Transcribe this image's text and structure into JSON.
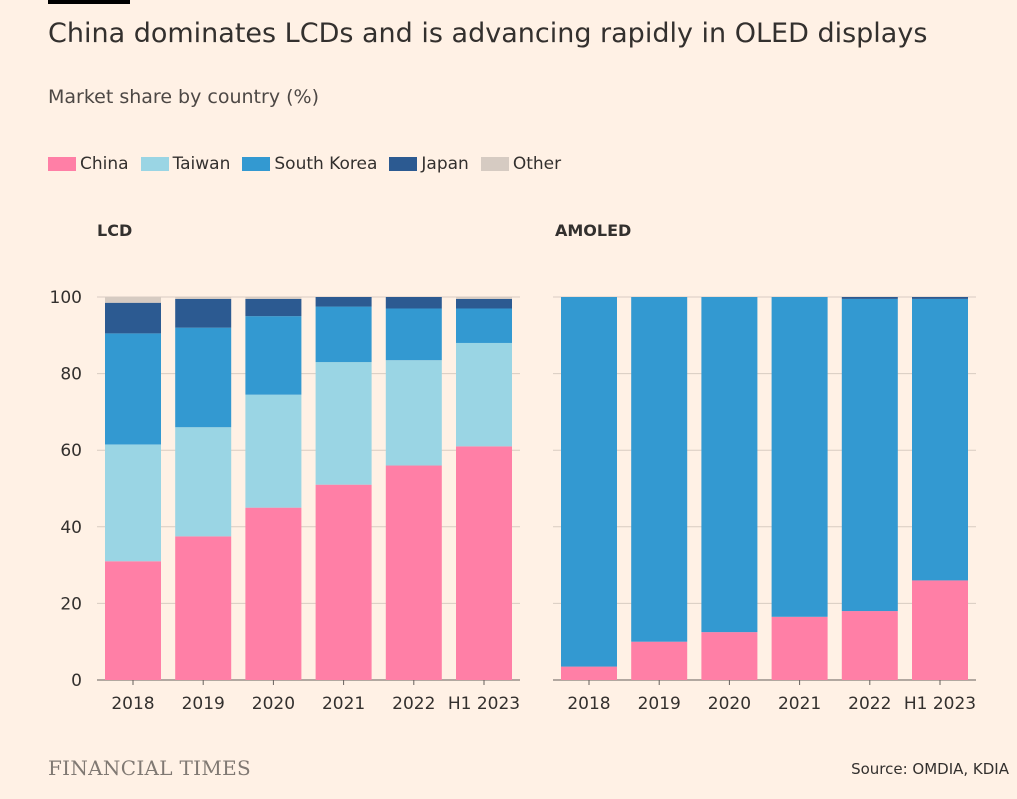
{
  "header": {
    "title": "China dominates LCDs and is advancing rapidly in OLED displays",
    "subtitle": "Market share by country (%)"
  },
  "legend": [
    {
      "label": "China",
      "color": "#ff7fa6"
    },
    {
      "label": "Taiwan",
      "color": "#9ad5e4"
    },
    {
      "label": "South Korea",
      "color": "#3399d1"
    },
    {
      "label": "Japan",
      "color": "#2c5a91"
    },
    {
      "label": "Other",
      "color": "#d6cbc2"
    }
  ],
  "chart_data": [
    {
      "type": "bar",
      "stacked": true,
      "title": "LCD",
      "categories": [
        "2018",
        "2019",
        "2020",
        "2021",
        "2022",
        "H1 2023"
      ],
      "ylim": [
        0,
        100
      ],
      "yticks": [
        0,
        20,
        40,
        60,
        80,
        100
      ],
      "series": [
        {
          "name": "China",
          "values": [
            31,
            37.5,
            45,
            51,
            56,
            61
          ]
        },
        {
          "name": "Taiwan",
          "values": [
            30.5,
            28.5,
            29.5,
            32,
            27.5,
            27
          ]
        },
        {
          "name": "South Korea",
          "values": [
            29,
            26,
            20.5,
            14.5,
            13.5,
            9
          ]
        },
        {
          "name": "Japan",
          "values": [
            8,
            7.5,
            4.5,
            2.5,
            3,
            2.5
          ]
        },
        {
          "name": "Other",
          "values": [
            1.5,
            0.5,
            0.5,
            0,
            0,
            0.5
          ]
        }
      ]
    },
    {
      "type": "bar",
      "stacked": true,
      "title": "AMOLED",
      "categories": [
        "2018",
        "2019",
        "2020",
        "2021",
        "2022",
        "H1 2023"
      ],
      "ylim": [
        0,
        100
      ],
      "yticks": [
        0,
        20,
        40,
        60,
        80,
        100
      ],
      "series": [
        {
          "name": "China",
          "values": [
            3.5,
            10,
            12.5,
            16.5,
            18,
            26
          ]
        },
        {
          "name": "Taiwan",
          "values": [
            0,
            0,
            0,
            0,
            0,
            0
          ]
        },
        {
          "name": "South Korea",
          "values": [
            96.5,
            90,
            87.5,
            83.5,
            81.5,
            73.5
          ]
        },
        {
          "name": "Japan",
          "values": [
            0,
            0,
            0,
            0,
            0.5,
            0.5
          ]
        },
        {
          "name": "Other",
          "values": [
            0,
            0,
            0,
            0,
            0,
            0
          ]
        }
      ]
    }
  ],
  "footer": {
    "brand": "FINANCIAL TIMES",
    "source": "Source: OMDIA, KDIA"
  }
}
